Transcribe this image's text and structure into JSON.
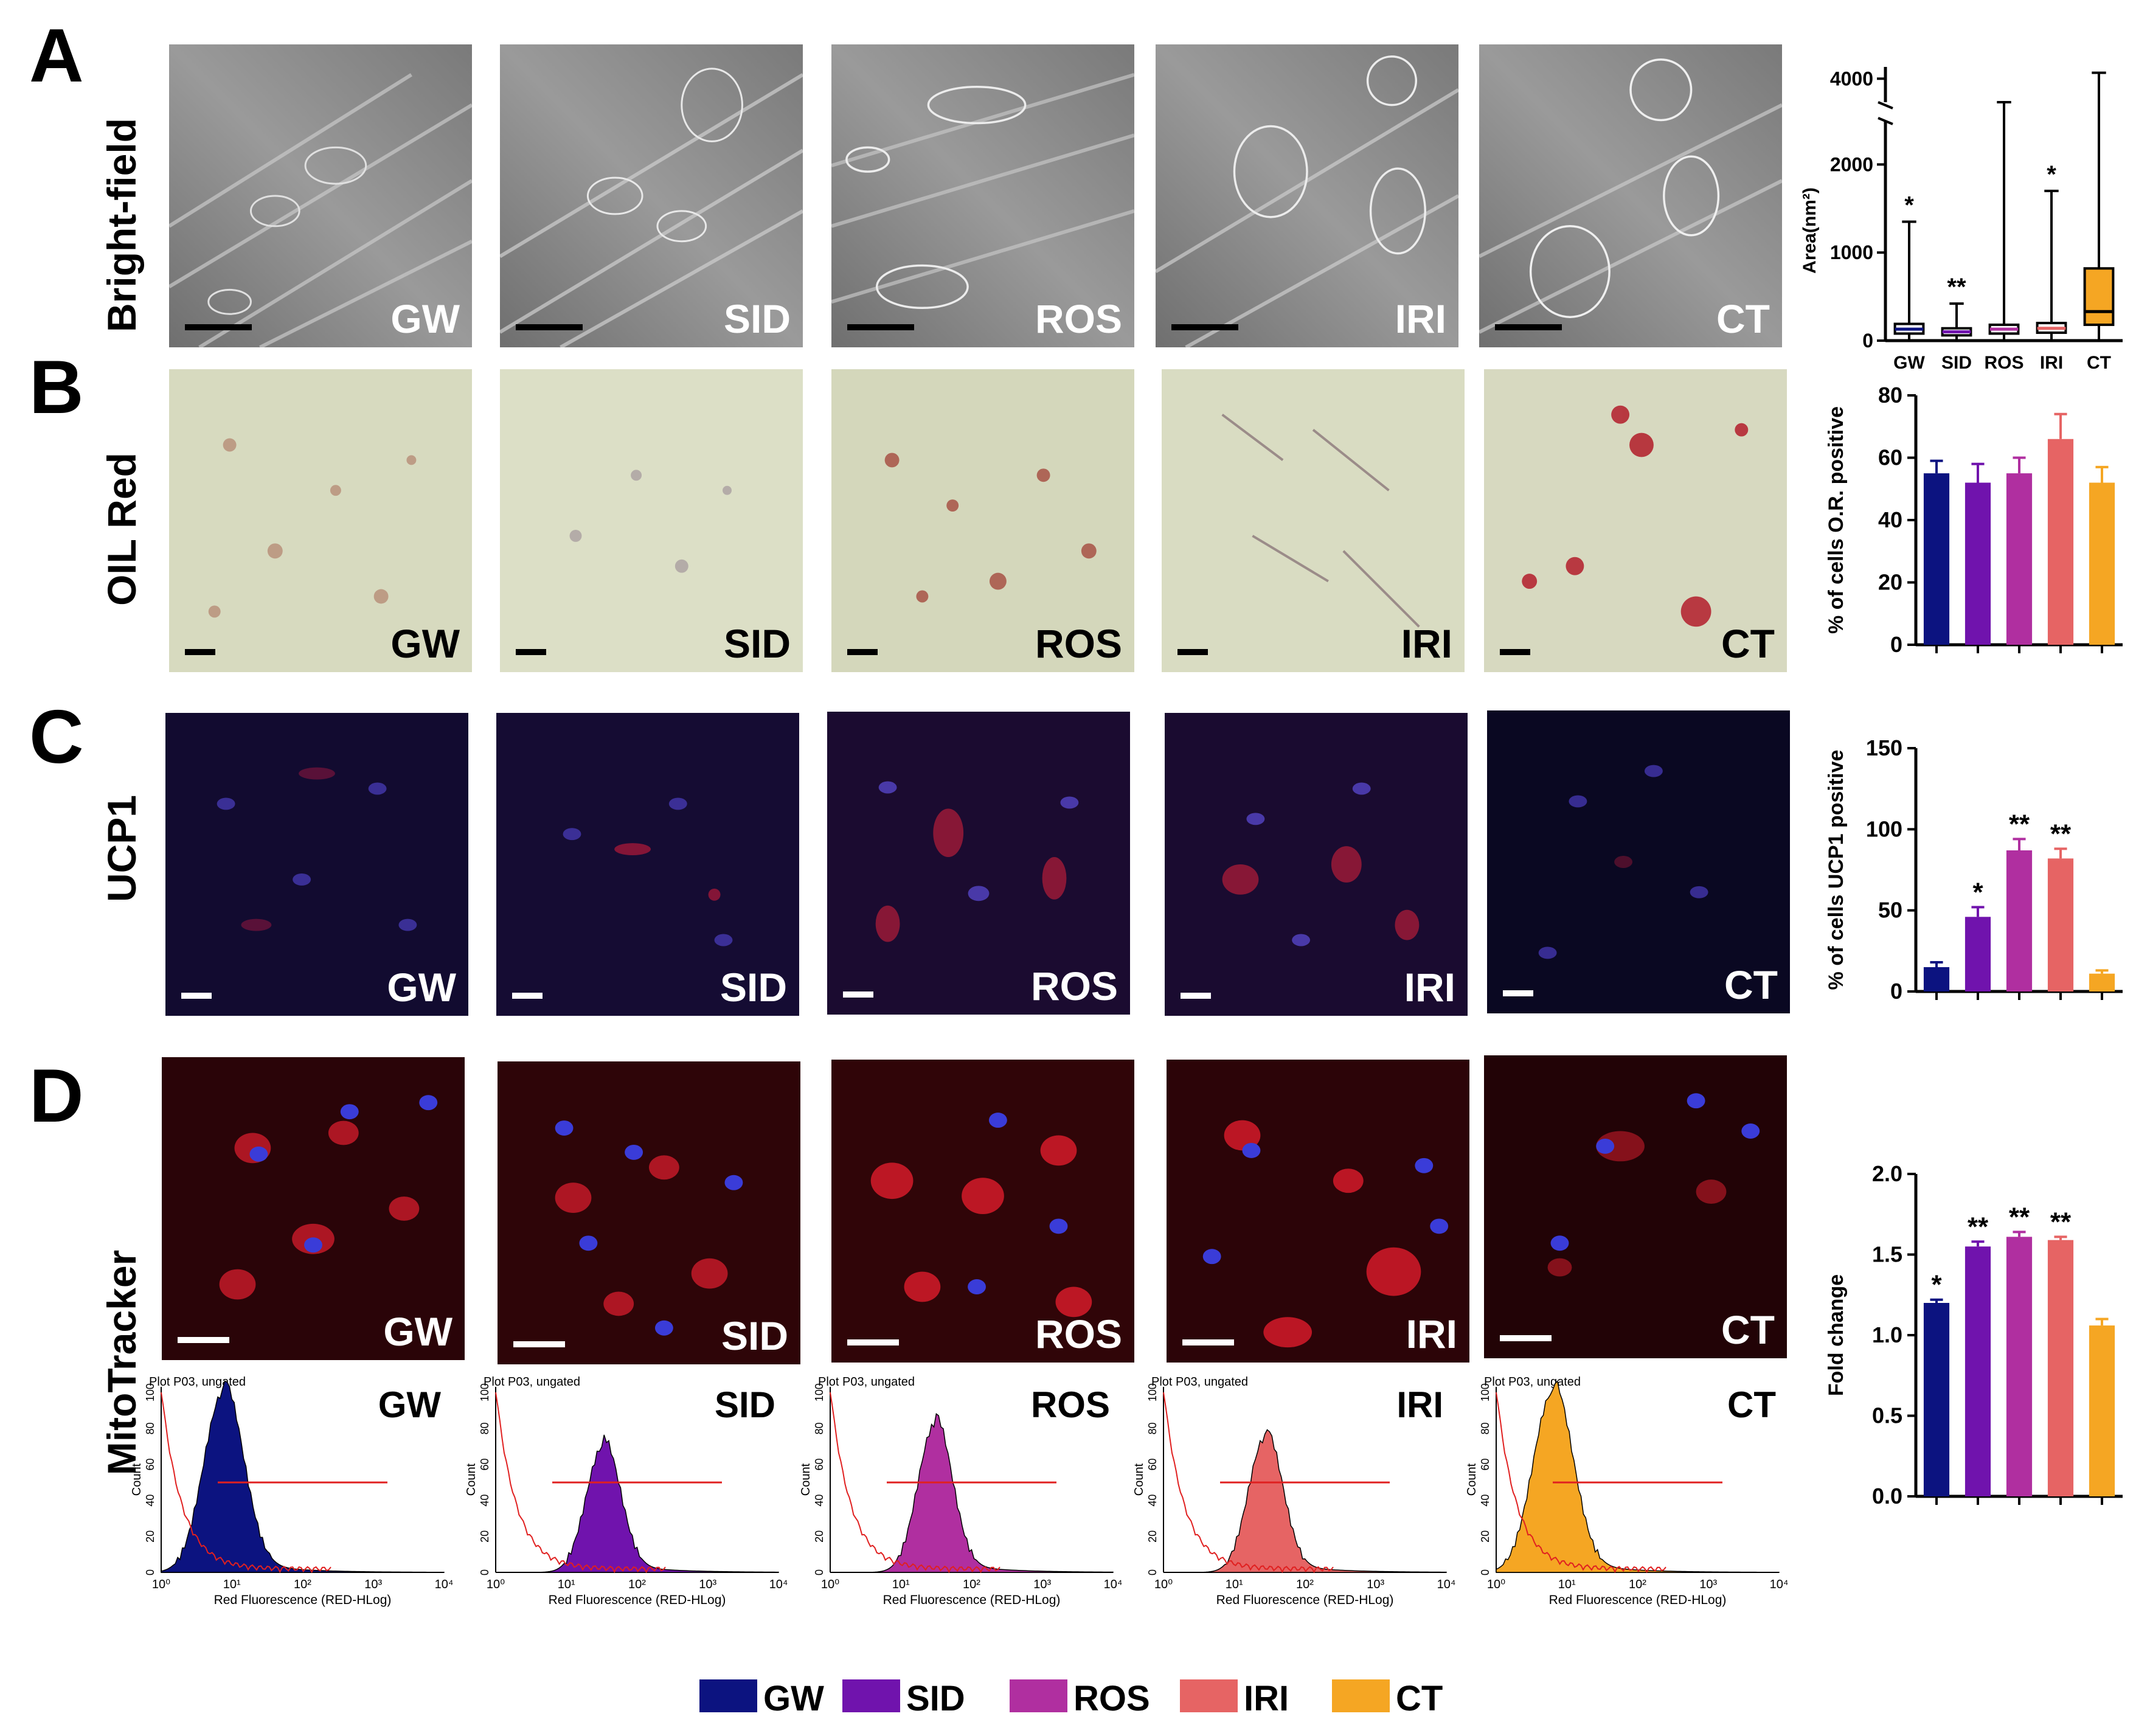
{
  "panels": {
    "A": {
      "letter": "A",
      "row_label": "Bright-field"
    },
    "B": {
      "letter": "B",
      "row_label": "OIL Red"
    },
    "C": {
      "letter": "C",
      "row_label": "UCP1"
    },
    "D": {
      "letter": "D",
      "row_label": "MitoTracker"
    }
  },
  "groups": [
    "GW",
    "SID",
    "ROS",
    "IRI",
    "CT"
  ],
  "colors": {
    "GW": "#0c1380",
    "SID": "#7013ad",
    "ROS": "#b02fa0",
    "IRI": "#e66464",
    "CT": "#f5a623"
  },
  "flow": {
    "plot_title": "Plot P03, ungated",
    "xlabel": "Red Fluorescence (RED-HLog)",
    "ylabel": "Count",
    "x_ticks": [
      "10⁰",
      "10¹",
      "10²",
      "10³",
      "10⁴"
    ],
    "y_ticks": [
      "0",
      "20",
      "40",
      "60",
      "80",
      "100"
    ]
  },
  "legend": {
    "items": [
      "GW",
      "SID",
      "ROS",
      "IRI",
      "CT"
    ]
  },
  "chart_data": [
    {
      "type": "box",
      "panel": "A",
      "ylabel": "Area(nm²)",
      "categories": [
        "GW",
        "SID",
        "ROS",
        "IRI",
        "CT"
      ],
      "y_ticks": [
        "0",
        "1000",
        "2000",
        "4000"
      ],
      "axis_break": [
        2500,
        3800
      ],
      "boxes": [
        {
          "name": "GW",
          "min": 0,
          "q1": 80,
          "median": 130,
          "q3": 190,
          "max": 1350,
          "sig": "*"
        },
        {
          "name": "SID",
          "min": 0,
          "q1": 60,
          "median": 100,
          "q3": 140,
          "max": 420,
          "sig": "**"
        },
        {
          "name": "ROS",
          "min": 0,
          "q1": 80,
          "median": 130,
          "q3": 180,
          "max": 3800,
          "sig": ""
        },
        {
          "name": "IRI",
          "min": 0,
          "q1": 90,
          "median": 140,
          "q3": 200,
          "max": 1700,
          "sig": "*"
        },
        {
          "name": "CT",
          "min": 0,
          "q1": 180,
          "median": 330,
          "q3": 820,
          "max": 4050,
          "sig": ""
        }
      ]
    },
    {
      "type": "bar",
      "panel": "B",
      "ylabel": "% of cells O.R. positive",
      "categories": [
        "GW",
        "SID",
        "ROS",
        "IRI",
        "CT"
      ],
      "values": [
        55,
        52,
        55,
        66,
        52
      ],
      "errors": [
        4,
        6,
        5,
        8,
        5
      ],
      "sig": [
        "",
        "",
        "",
        "",
        ""
      ],
      "ylim": [
        0,
        80
      ],
      "y_ticks": [
        "0",
        "20",
        "40",
        "60",
        "80"
      ]
    },
    {
      "type": "bar",
      "panel": "C",
      "ylabel": "% of cells UCP1 positive",
      "categories": [
        "GW",
        "SID",
        "ROS",
        "IRI",
        "CT"
      ],
      "values": [
        15,
        46,
        87,
        82,
        11
      ],
      "errors": [
        3,
        6,
        7,
        6,
        2
      ],
      "sig": [
        "",
        "*",
        "**",
        "**",
        ""
      ],
      "ylim": [
        0,
        150
      ],
      "y_ticks": [
        "0",
        "50",
        "100",
        "150"
      ]
    },
    {
      "type": "bar",
      "panel": "D",
      "ylabel": "Fold change",
      "categories": [
        "GW",
        "SID",
        "ROS",
        "IRI",
        "CT"
      ],
      "values": [
        1.2,
        1.55,
        1.61,
        1.59,
        1.06
      ],
      "errors": [
        0.02,
        0.03,
        0.03,
        0.02,
        0.04
      ],
      "sig": [
        "*",
        "**",
        "**",
        "**",
        ""
      ],
      "ylim": [
        0,
        2.0
      ],
      "y_ticks": [
        "0.0",
        "0.5",
        "1.0",
        "1.5",
        "2.0"
      ]
    }
  ]
}
